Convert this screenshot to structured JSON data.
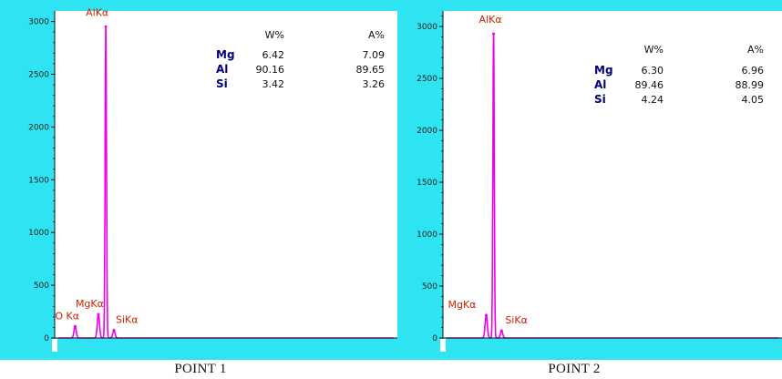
{
  "chart_data": [
    {
      "type": "line",
      "caption": "POINT 1",
      "xlim": [
        0,
        10.5
      ],
      "ylim": [
        0,
        3100
      ],
      "yticks": [
        0,
        500,
        1000,
        1500,
        2000,
        2500,
        3000
      ],
      "grid": false,
      "colors": {
        "frame": "#2fe4f2",
        "plot_bg": "#ffffff",
        "spectrum": "#ee00ee",
        "axis": "#111111",
        "tick_label": "#222222",
        "peak_label": "#cc2200",
        "element": "#00007a",
        "value": "#111111"
      },
      "peaks": [
        {
          "label": "O Kα",
          "energy": 0.525,
          "counts": 110
        },
        {
          "label": "MgKα",
          "energy": 1.254,
          "counts": 225
        },
        {
          "label": "AlKα",
          "energy": 1.487,
          "counts": 2950
        },
        {
          "label": "SiKα",
          "energy": 1.74,
          "counts": 75
        }
      ],
      "table": {
        "headers": [
          "W%",
          "A%"
        ],
        "rows": [
          {
            "element": "Mg",
            "w": "6.42",
            "a": "7.09"
          },
          {
            "element": "Al",
            "w": "90.16",
            "a": "89.65"
          },
          {
            "element": "Si",
            "w": "3.42",
            "a": "3.26"
          }
        ]
      }
    },
    {
      "type": "line",
      "caption": "POINT  2",
      "xlim": [
        0,
        10.5
      ],
      "ylim": [
        0,
        3150
      ],
      "yticks": [
        0,
        500,
        1000,
        1500,
        2000,
        2500,
        3000
      ],
      "grid": false,
      "colors": {
        "frame": "#2fe4f2",
        "plot_bg": "#ffffff",
        "spectrum": "#ee00ee",
        "axis": "#111111",
        "tick_label": "#222222",
        "peak_label": "#cc2200",
        "element": "#00007a",
        "value": "#111111"
      },
      "peaks": [
        {
          "label": "MgKα",
          "energy": 1.254,
          "counts": 220
        },
        {
          "label": "AlKα",
          "energy": 1.487,
          "counts": 2930
        },
        {
          "label": "SiKα",
          "energy": 1.74,
          "counts": 70
        }
      ],
      "table": {
        "headers": [
          "W%",
          "A%"
        ],
        "rows": [
          {
            "element": "Mg",
            "w": "6.30",
            "a": "6.96"
          },
          {
            "element": "Al",
            "w": "89.46",
            "a": "88.99"
          },
          {
            "element": "Si",
            "w": "4.24",
            "a": "4.05"
          }
        ]
      }
    }
  ]
}
